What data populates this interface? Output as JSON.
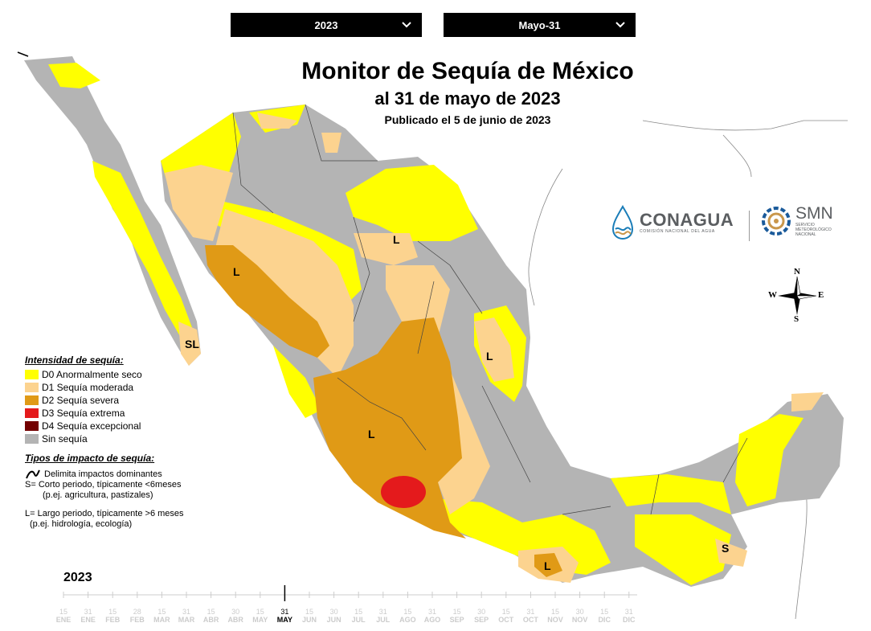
{
  "dropdowns": {
    "year": "2023",
    "date": "Mayo-31"
  },
  "titles": {
    "main": "Monitor de Sequía de México",
    "date": "al 31 de mayo de 2023",
    "published": "Publicado el 5 de junio de 2023"
  },
  "logos": {
    "conagua": {
      "name": "CONAGUA",
      "sub": "COMISIÓN NACIONAL DEL AGUA"
    },
    "smn": {
      "name": "SMN",
      "sub1": "SERVICIO",
      "sub2": "METEOROLÓGICO",
      "sub3": "NACIONAL"
    }
  },
  "compass": {
    "n": "N",
    "s": "S",
    "e": "E",
    "w": "W"
  },
  "legend": {
    "title": "Intensidad de sequía:",
    "items": [
      {
        "code": "D0",
        "label": "D0 Anormalmente seco",
        "color": "#ffff00"
      },
      {
        "code": "D1",
        "label": "D1 Sequía moderada",
        "color": "#fcd38f"
      },
      {
        "code": "D2",
        "label": "D2 Sequía severa",
        "color": "#e09a16"
      },
      {
        "code": "D3",
        "label": "D3 Sequía extrema",
        "color": "#e41a1c"
      },
      {
        "code": "D4",
        "label": "D4 Sequía excepcional",
        "color": "#730000"
      },
      {
        "code": "none",
        "label": "Sin sequía",
        "color": "#b4b4b4"
      }
    ]
  },
  "impacts": {
    "title": "Tipos de impacto de sequía:",
    "line_label": "Delimita impactos dominantes",
    "s_label": "S= Corto periodo, típicamente <6meses",
    "s_example": "(p.ej. agricultura, pastizales)",
    "l_label": "L= Largo periodo, típicamente >6 meses",
    "l_example": "(p.ej. hidrología, ecología)"
  },
  "map_labels": [
    {
      "text": "SL"
    },
    {
      "text": "L"
    },
    {
      "text": "L"
    },
    {
      "text": "L"
    },
    {
      "text": "L"
    },
    {
      "text": "L"
    },
    {
      "text": "S"
    }
  ],
  "timeline": {
    "year": "2023",
    "ticks": [
      {
        "d": "15",
        "m": "ENE"
      },
      {
        "d": "31",
        "m": "ENE"
      },
      {
        "d": "15",
        "m": "FEB"
      },
      {
        "d": "28",
        "m": "FEB"
      },
      {
        "d": "15",
        "m": "MAR"
      },
      {
        "d": "31",
        "m": "MAR"
      },
      {
        "d": "15",
        "m": "ABR"
      },
      {
        "d": "30",
        "m": "ABR"
      },
      {
        "d": "15",
        "m": "MAY"
      },
      {
        "d": "31",
        "m": "MAY"
      },
      {
        "d": "15",
        "m": "JUN"
      },
      {
        "d": "30",
        "m": "JUN"
      },
      {
        "d": "15",
        "m": "JUL"
      },
      {
        "d": "31",
        "m": "JUL"
      },
      {
        "d": "15",
        "m": "AGO"
      },
      {
        "d": "31",
        "m": "AGO"
      },
      {
        "d": "15",
        "m": "SEP"
      },
      {
        "d": "30",
        "m": "SEP"
      },
      {
        "d": "15",
        "m": "OCT"
      },
      {
        "d": "31",
        "m": "OCT"
      },
      {
        "d": "15",
        "m": "NOV"
      },
      {
        "d": "30",
        "m": "NOV"
      },
      {
        "d": "15",
        "m": "DIC"
      },
      {
        "d": "31",
        "m": "DIC"
      }
    ],
    "active_index": 9
  }
}
